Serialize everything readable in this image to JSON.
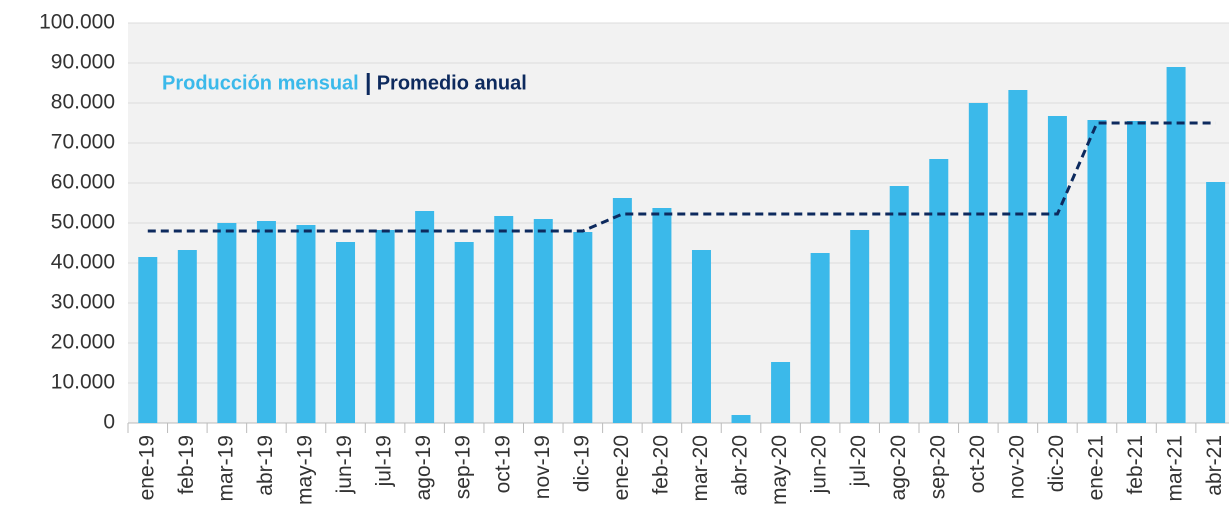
{
  "chart_data": {
    "type": "bar",
    "categories": [
      "ene-19",
      "feb-19",
      "mar-19",
      "abr-19",
      "may-19",
      "jun-19",
      "jul-19",
      "ago-19",
      "sep-19",
      "oct-19",
      "nov-19",
      "dic-19",
      "ene-20",
      "feb-20",
      "mar-20",
      "abr-20",
      "may-20",
      "jun-20",
      "jul-20",
      "ago-20",
      "sep-20",
      "oct-20",
      "nov-20",
      "dic-20",
      "ene-21",
      "feb-21",
      "mar-21",
      "abr-21"
    ],
    "series": [
      {
        "name": "Producción mensual",
        "type": "bar",
        "color": "#3bb9ea",
        "values": [
          41500,
          43250,
          50000,
          50500,
          49500,
          45250,
          48250,
          53000,
          45250,
          51750,
          51000,
          47750,
          56250,
          53750,
          43250,
          2000,
          15250,
          42500,
          48250,
          59250,
          66000,
          80000,
          83250,
          76750,
          75750,
          75500,
          89000,
          60250
        ]
      },
      {
        "name": "Promedio anual",
        "type": "line",
        "color": "#0d2a5e",
        "values": [
          48000,
          48000,
          48000,
          48000,
          48000,
          48000,
          48000,
          48000,
          48000,
          48000,
          48000,
          48000,
          52250,
          52250,
          52250,
          52250,
          52250,
          52250,
          52250,
          52250,
          52250,
          52250,
          52250,
          52250,
          75000,
          75000,
          75000,
          75000
        ]
      }
    ],
    "ylim": [
      0,
      100000
    ],
    "yticks": [
      0,
      {
        "value": 10000,
        "label": "10.000"
      },
      {
        "value": 20000,
        "label": "20.000"
      },
      {
        "value": 30000,
        "label": "30.000"
      },
      {
        "value": 40000,
        "label": "40.000"
      },
      {
        "value": 50000,
        "label": "50.000"
      },
      {
        "value": 60000,
        "label": "60.000"
      },
      {
        "value": 70000,
        "label": "70.000"
      },
      {
        "value": 80000,
        "label": "80.000"
      },
      {
        "value": 90000,
        "label": "90.000"
      },
      {
        "value": 100000,
        "label": "100.000"
      }
    ],
    "grid": true
  }
}
